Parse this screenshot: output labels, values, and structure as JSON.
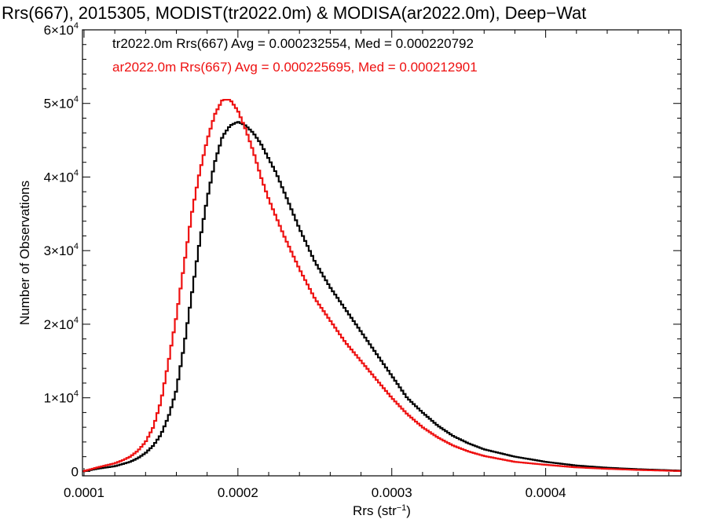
{
  "chart_data": {
    "type": "line",
    "title": "Rrs(667), 2015305, MODIST(tr2022.0m) & MODISA(ar2022.0m), Deep−Wat",
    "xlabel": "Rrs (str⁻¹)",
    "ylabel": "Number of Observations",
    "xlim": [
      9.9e-05,
      0.000488
    ],
    "ylim": [
      -600,
      60000
    ],
    "xticks": [
      {
        "value": 0.0001,
        "label": "0.0001"
      },
      {
        "value": 0.0002,
        "label": "0.0002"
      },
      {
        "value": 0.0003,
        "label": "0.0003"
      },
      {
        "value": 0.0004,
        "label": "0.0004"
      }
    ],
    "yticks": [
      {
        "value": 0,
        "label": "0"
      },
      {
        "value": 10000,
        "label": "1×10⁴"
      },
      {
        "value": 20000,
        "label": "2×10⁴"
      },
      {
        "value": 30000,
        "label": "3×10⁴"
      },
      {
        "value": 40000,
        "label": "4×10⁴"
      },
      {
        "value": 50000,
        "label": "5×10⁴"
      },
      {
        "value": 60000,
        "label": "6×10⁴"
      }
    ],
    "grid": false,
    "legend_position": "top-left",
    "series": [
      {
        "name": "tr2022.0m",
        "legend": "tr2022.0m Rrs(667) Avg = 0.000232554, Med = 0.000220792",
        "color": "#000000",
        "x": [
          9.9e-05,
          0.00011,
          0.00012,
          0.000125,
          0.00013,
          0.000135,
          0.00014,
          0.000145,
          0.00015,
          0.000155,
          0.00016,
          0.000165,
          0.00017,
          0.000175,
          0.00018,
          0.000185,
          0.00019,
          0.000195,
          0.0002,
          0.000205,
          0.00021,
          0.000215,
          0.00022,
          0.000225,
          0.00023,
          0.00024,
          0.00025,
          0.00026,
          0.00027,
          0.00028,
          0.00029,
          0.0003,
          0.00031,
          0.00032,
          0.00033,
          0.00034,
          0.00035,
          0.00036,
          0.00037,
          0.00038,
          0.0004,
          0.00042,
          0.00044,
          0.00046,
          0.000488
        ],
        "y": [
          0,
          400,
          700,
          1000,
          1300,
          1800,
          2500,
          3500,
          5000,
          7500,
          11000,
          17000,
          24000,
          31000,
          37000,
          42000,
          45500,
          47000,
          47500,
          47000,
          46000,
          44500,
          42500,
          40500,
          38000,
          33000,
          28500,
          25000,
          22000,
          19000,
          16000,
          13000,
          10000,
          8000,
          6200,
          4800,
          3800,
          3000,
          2500,
          2000,
          1300,
          800,
          500,
          300,
          100
        ]
      },
      {
        "name": "ar2022.0m",
        "legend": "ar2022.0m Rrs(667) Avg = 0.000225695, Med = 0.000212901",
        "color": "#ee1111",
        "x": [
          9.9e-05,
          0.00011,
          0.00012,
          0.000125,
          0.00013,
          0.000135,
          0.00014,
          0.000145,
          0.00015,
          0.000155,
          0.00016,
          0.000165,
          0.00017,
          0.000175,
          0.00018,
          0.000185,
          0.00019,
          0.000195,
          0.0002,
          0.000205,
          0.00021,
          0.000215,
          0.00022,
          0.000225,
          0.00023,
          0.00024,
          0.00025,
          0.00026,
          0.00027,
          0.00028,
          0.00029,
          0.0003,
          0.00031,
          0.00032,
          0.00033,
          0.00034,
          0.00035,
          0.00036,
          0.00037,
          0.00038,
          0.0004,
          0.00042,
          0.00044,
          0.00046,
          0.000488
        ],
        "y": [
          0,
          600,
          1100,
          1500,
          2000,
          2800,
          4000,
          6000,
          9500,
          15000,
          21000,
          28000,
          35000,
          40500,
          45000,
          48500,
          50500,
          50500,
          49000,
          46500,
          43500,
          40000,
          37000,
          34500,
          32000,
          27500,
          23500,
          20500,
          17500,
          15000,
          12500,
          10000,
          7800,
          6000,
          4600,
          3500,
          2700,
          2100,
          1700,
          1300,
          900,
          550,
          350,
          200,
          50
        ]
      }
    ]
  }
}
